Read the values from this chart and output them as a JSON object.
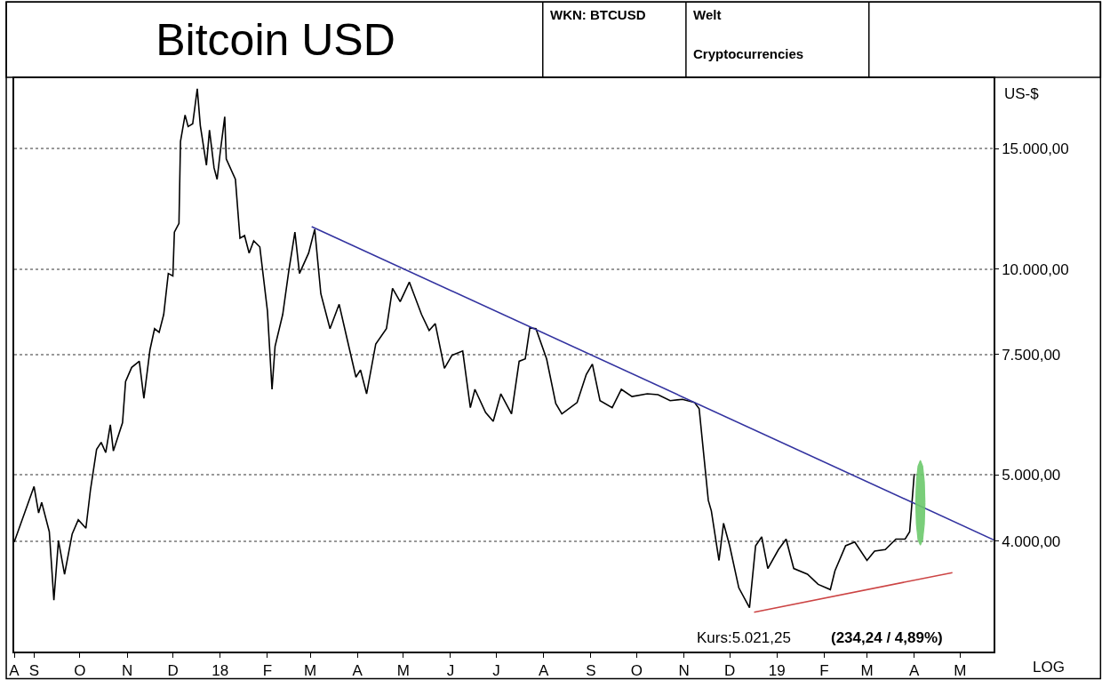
{
  "chart_data": {
    "type": "line",
    "title": "Bitcoin USD",
    "ylabel": "US-$",
    "log": true,
    "grid": "y",
    "marker": "none",
    "line_style": "solid",
    "xlim": [
      "2017-08-19",
      "2019-05-23"
    ],
    "ylim": [
      2760,
      19000
    ],
    "xticks": [
      {
        "value": "2017-08-19",
        "label": "A"
      },
      {
        "value": "2017-09-01",
        "label": "S"
      },
      {
        "value": "2017-10-01",
        "label": "O"
      },
      {
        "value": "2017-11-01",
        "label": "N"
      },
      {
        "value": "2017-12-01",
        "label": "D"
      },
      {
        "value": "2018-01-01",
        "label": "18"
      },
      {
        "value": "2018-02-01",
        "label": "F"
      },
      {
        "value": "2018-03-01",
        "label": "M"
      },
      {
        "value": "2018-04-01",
        "label": "A"
      },
      {
        "value": "2018-05-01",
        "label": "M"
      },
      {
        "value": "2018-06-01",
        "label": "J"
      },
      {
        "value": "2018-07-01",
        "label": "J"
      },
      {
        "value": "2018-08-01",
        "label": "A"
      },
      {
        "value": "2018-09-01",
        "label": "S"
      },
      {
        "value": "2018-10-01",
        "label": "O"
      },
      {
        "value": "2018-11-01",
        "label": "N"
      },
      {
        "value": "2018-12-01",
        "label": "D"
      },
      {
        "value": "2019-01-01",
        "label": "19"
      },
      {
        "value": "2019-02-01",
        "label": "F"
      },
      {
        "value": "2019-03-01",
        "label": "M"
      },
      {
        "value": "2019-04-01",
        "label": "A"
      },
      {
        "value": "2019-05-01",
        "label": "M"
      }
    ],
    "yticks": [
      {
        "value": 4000,
        "label": "4.000,00"
      },
      {
        "value": 5000,
        "label": "5.000,00"
      },
      {
        "value": 7500,
        "label": "7.500,00"
      },
      {
        "value": 10000,
        "label": "10.000,00"
      },
      {
        "value": 15000,
        "label": "15.000,00"
      }
    ],
    "annotations": [
      "Kurs:5.021,25",
      "(234,24 / 4,89%)",
      "LOG",
      "WKN: BTCUSD",
      "Welt",
      "Cryptocurrencies"
    ],
    "series": [
      {
        "color": "#000000",
        "x": [
          "2017-08-19",
          "2017-09-01",
          "2017-09-04",
          "2017-09-06",
          "2017-09-11",
          "2017-09-14",
          "2017-09-17",
          "2017-09-21",
          "2017-09-26",
          "2017-09-30",
          "2017-10-05",
          "2017-10-08",
          "2017-10-12",
          "2017-10-15",
          "2017-10-18",
          "2017-10-21",
          "2017-10-23",
          "2017-10-29",
          "2017-10-31",
          "2017-11-04",
          "2017-11-09",
          "2017-11-12",
          "2017-11-16",
          "2017-11-19",
          "2017-11-22",
          "2017-11-25",
          "2017-11-28",
          "2017-12-01",
          "2017-12-02",
          "2017-12-05",
          "2017-12-06",
          "2017-12-09",
          "2017-12-11",
          "2017-12-14",
          "2017-12-17",
          "2017-12-19",
          "2017-12-23",
          "2017-12-25",
          "2017-12-28",
          "2017-12-30",
          "2018-01-01",
          "2018-01-04",
          "2018-01-05",
          "2018-01-11",
          "2018-01-14",
          "2018-01-17",
          "2018-01-20",
          "2018-01-23",
          "2018-01-27",
          "2018-02-01",
          "2018-02-04",
          "2018-02-06",
          "2018-02-11",
          "2018-02-15",
          "2018-02-19",
          "2018-02-22",
          "2018-02-28",
          "2018-03-04",
          "2018-03-08",
          "2018-03-14",
          "2018-03-20",
          "2018-03-25",
          "2018-03-31",
          "2018-04-03",
          "2018-04-07",
          "2018-04-13",
          "2018-04-20",
          "2018-04-24",
          "2018-04-29",
          "2018-05-05",
          "2018-05-13",
          "2018-05-18",
          "2018-05-22",
          "2018-05-28",
          "2018-06-02",
          "2018-06-09",
          "2018-06-14",
          "2018-06-17",
          "2018-06-24",
          "2018-06-29",
          "2018-07-04",
          "2018-07-11",
          "2018-07-16",
          "2018-07-20",
          "2018-07-23",
          "2018-07-27",
          "2018-08-03",
          "2018-08-09",
          "2018-08-13",
          "2018-08-23",
          "2018-08-29",
          "2018-09-02",
          "2018-09-07",
          "2018-09-15",
          "2018-09-21",
          "2018-09-28",
          "2018-10-08",
          "2018-10-15",
          "2018-10-23",
          "2018-10-31",
          "2018-11-08",
          "2018-11-11",
          "2018-11-17",
          "2018-11-19",
          "2018-11-24",
          "2018-11-27",
          "2018-12-01",
          "2018-12-07",
          "2018-12-14",
          "2018-12-18",
          "2018-12-22",
          "2018-12-26",
          "2019-01-02",
          "2019-01-07",
          "2019-01-12",
          "2019-01-21",
          "2019-01-28",
          "2019-02-05",
          "2019-02-08",
          "2019-02-15",
          "2019-02-21",
          "2019-03-01",
          "2019-03-06",
          "2019-03-13",
          "2019-03-20",
          "2019-03-26",
          "2019-03-29",
          "2019-04-01"
        ],
        "values": [
          3990,
          4810,
          4400,
          4560,
          4130,
          3280,
          4010,
          3580,
          4100,
          4300,
          4180,
          4760,
          5450,
          5580,
          5390,
          5920,
          5420,
          5960,
          6850,
          7180,
          7330,
          6470,
          7620,
          8180,
          8080,
          8580,
          9850,
          9770,
          11320,
          11660,
          15360,
          16790,
          16150,
          16300,
          18340,
          16200,
          14180,
          15960,
          14050,
          13520,
          14780,
          16690,
          14480,
          13520,
          11090,
          11190,
          10550,
          10990,
          10770,
          8680,
          6670,
          7710,
          8580,
          9940,
          11320,
          9850,
          10550,
          11430,
          9200,
          8180,
          8880,
          7940,
          6950,
          7120,
          6570,
          7770,
          8180,
          9370,
          8960,
          9570,
          8580,
          8130,
          8320,
          7160,
          7480,
          7590,
          6270,
          6670,
          6170,
          5990,
          6570,
          6140,
          7330,
          7390,
          8200,
          8180,
          7390,
          6360,
          6140,
          6380,
          7010,
          7260,
          6420,
          6270,
          6670,
          6510,
          6570,
          6550,
          6420,
          6450,
          6380,
          6250,
          4590,
          4430,
          3750,
          4250,
          3940,
          3420,
          3200,
          3940,
          4060,
          3650,
          3890,
          4030,
          3650,
          3580,
          3460,
          3400,
          3620,
          3940,
          3990,
          3750,
          3870,
          3890,
          4030,
          4030,
          4130,
          5020
        ]
      },
      {
        "type": "line",
        "color": "#3333a0",
        "x": [
          "2018-03-02",
          "2019-05-23"
        ],
        "values": [
          11530,
          4020
        ]
      },
      {
        "type": "line",
        "color": "#cc4444",
        "x": [
          "2018-12-17",
          "2019-04-26"
        ],
        "values": [
          3150,
          3600
        ]
      },
      {
        "type": "area",
        "color": "#6cc96c",
        "x": [
          "2019-04-08T00:00",
          "2019-04-07T14:00",
          "2019-04-06T12:00",
          "2019-04-05T00:00",
          "2019-04-03T12:00",
          "2019-04-02T10:00",
          "2019-04-02T00:00",
          "2019-04-02T10:00",
          "2019-04-03T12:00",
          "2019-04-05T00:00",
          "2019-04-06T12:00",
          "2019-04-07T14:00",
          "2019-04-08T00:00"
        ],
        "values": [
          4550,
          4890,
          5150,
          5250,
          5150,
          4890,
          4550,
          4240,
          4020,
          3950,
          4020,
          4240,
          4550
        ]
      }
    ]
  }
}
